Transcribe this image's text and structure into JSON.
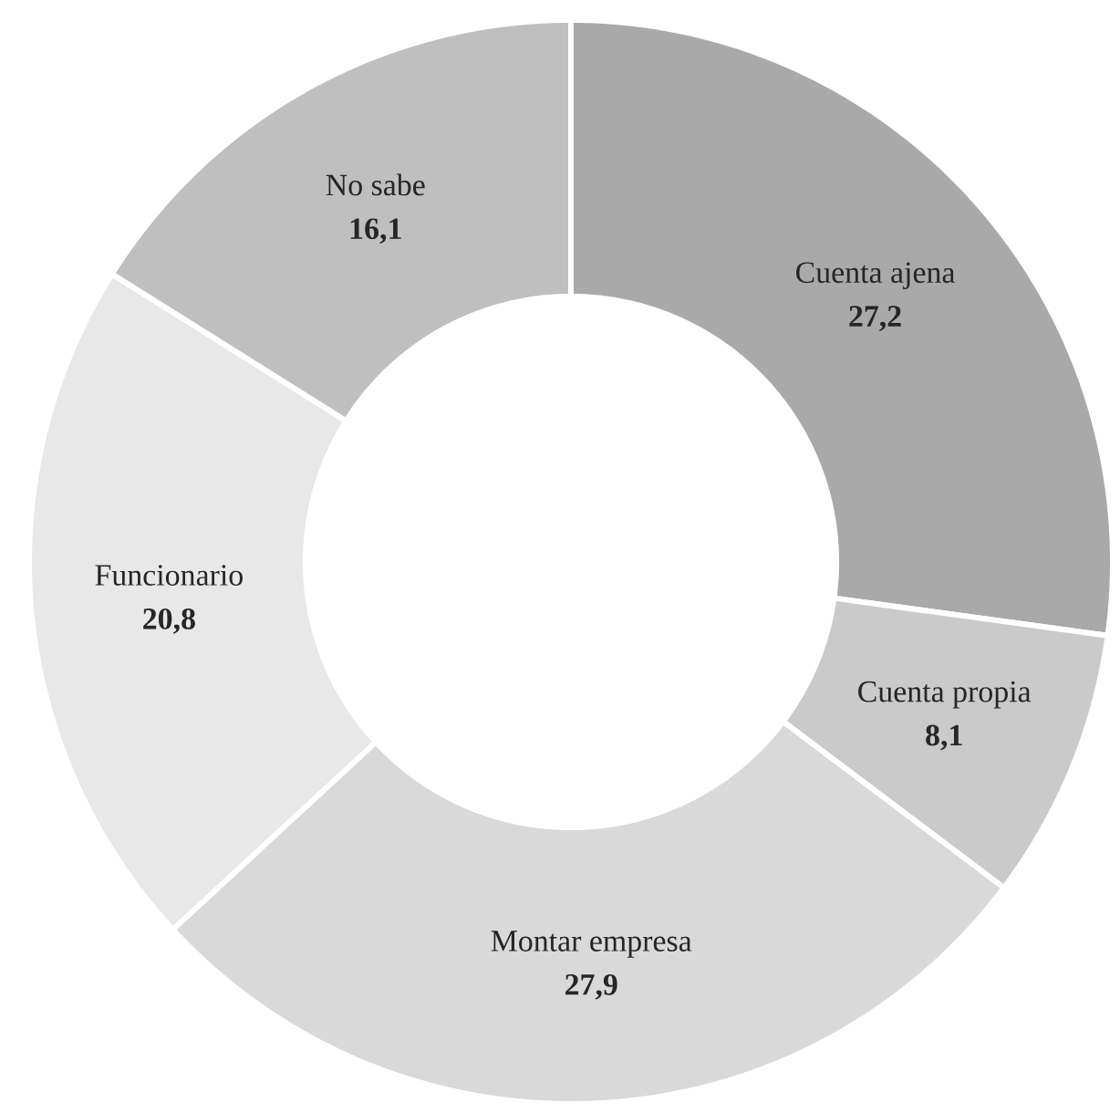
{
  "chart_data": {
    "type": "donut",
    "categories": [
      "Cuenta ajena",
      "Cuenta propia",
      "Montar empresa",
      "Funcionario",
      "No sabe"
    ],
    "values": [
      27.2,
      8.1,
      27.9,
      20.8,
      16.1
    ],
    "value_labels": [
      "27,2",
      "8,1",
      "27,9",
      "20,8",
      "16,1"
    ],
    "colors": [
      "#a9a9a9",
      "#cacaca",
      "#d9d9d9",
      "#e8e8e8",
      "#bfbfbf"
    ]
  }
}
